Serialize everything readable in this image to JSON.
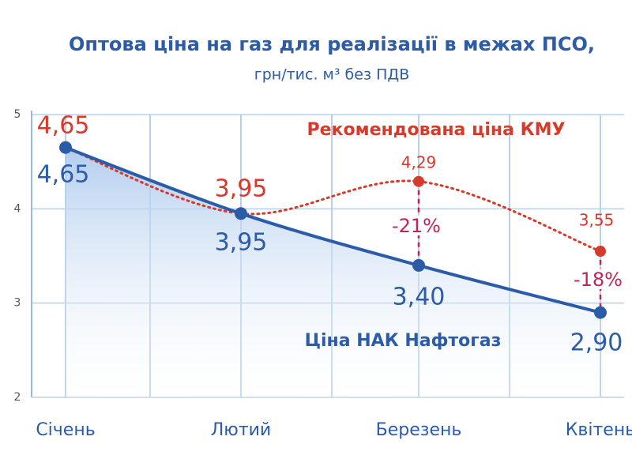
{
  "chart_data": {
    "type": "line",
    "title": "Оптова ціна на газ для реалізації в межах ПСО,",
    "subtitle": "грн/тис. м³ без ПДВ",
    "categories": [
      "Січень",
      "Лютий",
      "Березень",
      "Квітень"
    ],
    "series": [
      {
        "name": "Ціна НАК Нафтогаз",
        "color": "#2c5ba8",
        "values": [
          4.65,
          3.95,
          3.4,
          2.9
        ],
        "value_labels": [
          "4,65",
          "3,95",
          "3,40",
          "2,90"
        ]
      },
      {
        "name": "Рекомендована ціна КМУ",
        "color": "#d63a2a",
        "values": [
          4.65,
          3.95,
          4.29,
          3.55
        ],
        "value_labels": [
          "4,65",
          "3,95",
          "4,29",
          "3,55"
        ]
      }
    ],
    "annotations": [
      "-21%",
      "-18%"
    ],
    "ylim": [
      2,
      5
    ],
    "yticks": [
      2,
      3,
      4,
      5
    ],
    "grid": true
  }
}
